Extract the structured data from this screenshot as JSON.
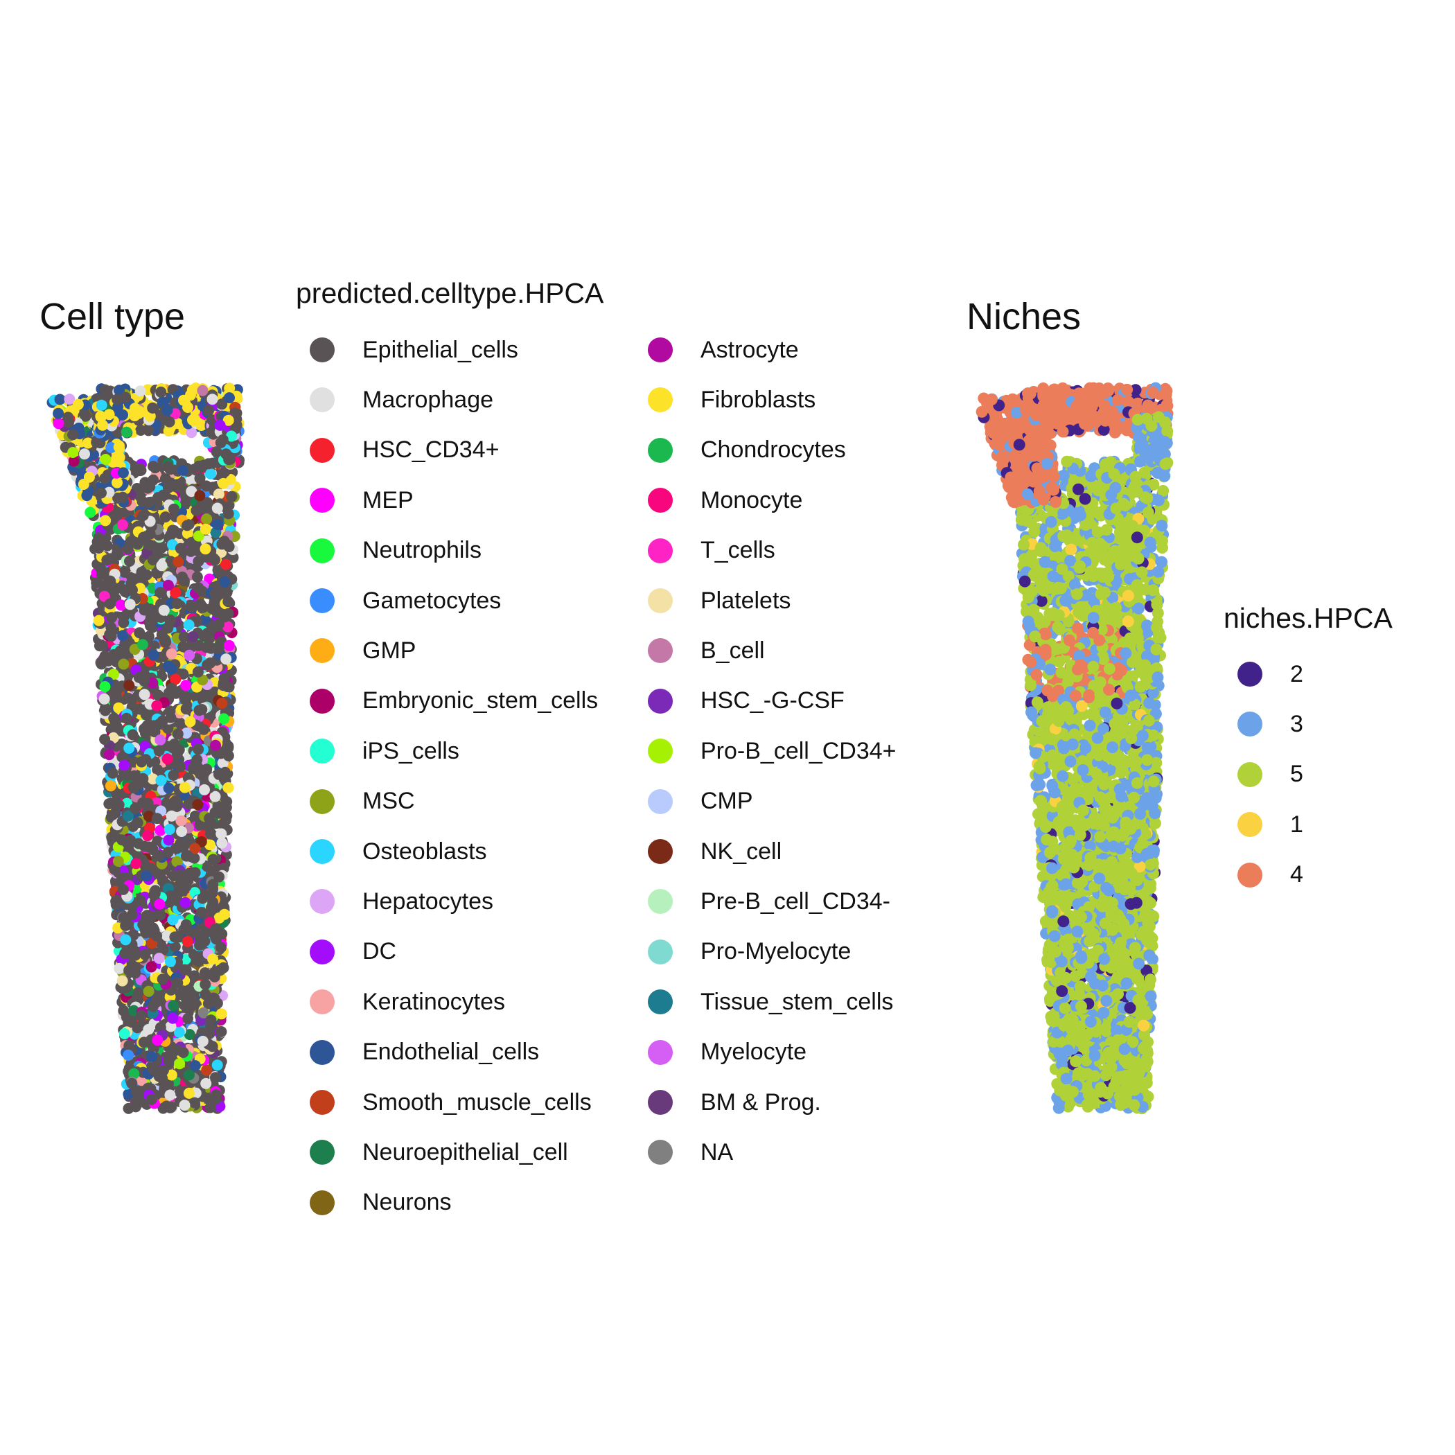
{
  "chart_data": [
    {
      "type": "scatter",
      "title": "Cell type",
      "legend_title": "predicted.celltype.HPCA",
      "legend_placement": "right",
      "grid": false,
      "axes_visible": false,
      "categories": [
        {
          "label": "Epithelial_cells",
          "color": "#5a5356",
          "share": 0.6
        },
        {
          "label": "Macrophage",
          "color": "#e0e0e0",
          "share": 0.07
        },
        {
          "label": "HSC_CD34+",
          "color": "#f5222d",
          "share": 0.01
        },
        {
          "label": "MEP",
          "color": "#ff00ff",
          "share": 0.02
        },
        {
          "label": "Neutrophils",
          "color": "#18f93d",
          "share": 0.01
        },
        {
          "label": "Gametocytes",
          "color": "#3a8dff",
          "share": 0.01
        },
        {
          "label": "GMP",
          "color": "#ffad14",
          "share": 0.01
        },
        {
          "label": "Embryonic_stem_cells",
          "color": "#ac0068",
          "share": 0.01
        },
        {
          "label": "iPS_cells",
          "color": "#23ffd3",
          "share": 0.01
        },
        {
          "label": "MSC",
          "color": "#8fa319",
          "share": 0.02
        },
        {
          "label": "Osteoblasts",
          "color": "#2ad5ff",
          "share": 0.03
        },
        {
          "label": "Hepatocytes",
          "color": "#dca5f5",
          "share": 0.01
        },
        {
          "label": "DC",
          "color": "#a30dfc",
          "share": 0.02
        },
        {
          "label": "Keratinocytes",
          "color": "#f8a3a3",
          "share": 0.01
        },
        {
          "label": "Endothelial_cells",
          "color": "#2e5596",
          "share": 0.04
        },
        {
          "label": "Smooth_muscle_cells",
          "color": "#c23f1b",
          "share": 0.01
        },
        {
          "label": "Neuroepithelial_cell",
          "color": "#1d7f4e",
          "share": 0.01
        },
        {
          "label": "Neurons",
          "color": "#7f6515",
          "share": 0.005
        },
        {
          "label": "Astrocyte",
          "color": "#b10aa0",
          "share": 0.01
        },
        {
          "label": "Fibroblasts",
          "color": "#fde22a",
          "share": 0.06
        },
        {
          "label": "Chondrocytes",
          "color": "#1bb74f",
          "share": 0.01
        },
        {
          "label": "Monocyte",
          "color": "#f8067e",
          "share": 0.01
        },
        {
          "label": "T_cells",
          "color": "#fd23c4",
          "share": 0.005
        },
        {
          "label": "Platelets",
          "color": "#f3e1a5",
          "share": 0.01
        },
        {
          "label": "B_cell",
          "color": "#c478a7",
          "share": 0.005
        },
        {
          "label": "HSC_-G-CSF",
          "color": "#7a2ab7",
          "share": 0.005
        },
        {
          "label": "Pro-B_cell_CD34+",
          "color": "#a6f003",
          "share": 0.005
        },
        {
          "label": "CMP",
          "color": "#b9cbfc",
          "share": 0.005
        },
        {
          "label": "NK_cell",
          "color": "#7b2a18",
          "share": 0.005
        },
        {
          "label": "Pre-B_cell_CD34-",
          "color": "#b6f1bd",
          "share": 0.005
        },
        {
          "label": "Pro-Myelocyte",
          "color": "#7fdbd2",
          "share": 0.005
        },
        {
          "label": "Tissue_stem_cells",
          "color": "#1e7c91",
          "share": 0.005
        },
        {
          "label": "Myelocyte",
          "color": "#d55ff5",
          "share": 0.005
        },
        {
          "label": "BM & Prog.",
          "color": "#683a7b",
          "share": 0.005
        },
        {
          "label": "NA",
          "color": "#808080",
          "share": 0.005
        }
      ]
    },
    {
      "type": "scatter",
      "title": "Niches",
      "legend_title": "niches.HPCA",
      "legend_placement": "right",
      "grid": false,
      "axes_visible": false,
      "categories": [
        {
          "label": "2",
          "color": "#40228a",
          "share": 0.03
        },
        {
          "label": "3",
          "color": "#6ca2e8",
          "share": 0.25
        },
        {
          "label": "5",
          "color": "#b0d138",
          "share": 0.62
        },
        {
          "label": "1",
          "color": "#fad241",
          "share": 0.02
        },
        {
          "label": "4",
          "color": "#eb7d5b",
          "share": 0.08
        }
      ]
    }
  ]
}
